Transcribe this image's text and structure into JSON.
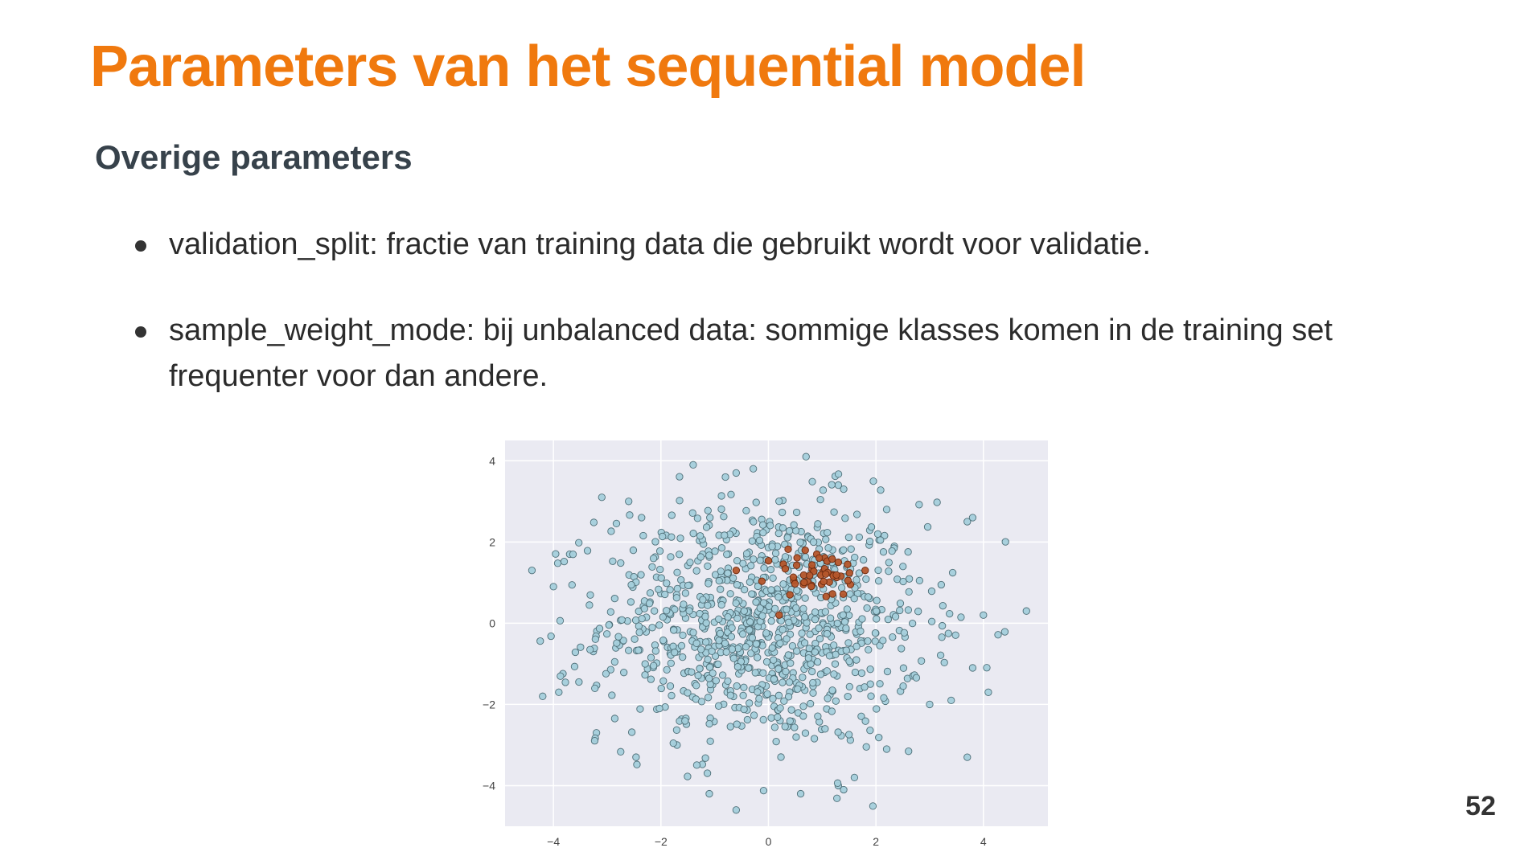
{
  "slide": {
    "title": "Parameters van het sequential model",
    "subtitle": "Overige parameters",
    "bullets": [
      "validation_split: fractie van training data die gebruikt wordt voor validatie.",
      "sample_weight_mode: bij unbalanced data: sommige klasses komen in de training set frequenter voor dan andere."
    ],
    "page_number": "52"
  },
  "chart_data": {
    "type": "scatter",
    "xlim": [
      -4.9,
      5.2
    ],
    "ylim": [
      -5.0,
      4.5
    ],
    "xticks": [
      -4,
      -2,
      0,
      2,
      4
    ],
    "yticks": [
      -4,
      -2,
      0,
      2,
      4
    ],
    "xtick_labels": [
      "−4",
      "−2",
      "0",
      "2",
      "4"
    ],
    "ytick_labels": [
      "−4",
      "−2",
      "0",
      "2",
      "4"
    ],
    "grid": true,
    "background": "#eaeaf2",
    "series": [
      {
        "color": "#a4cfdb",
        "edge": "#4f6f78",
        "distribution": "gaussian",
        "center": [
          -0.1,
          0.0
        ],
        "spread": [
          1.5,
          1.5
        ],
        "count": 1000,
        "points": [
          [
            -4.4,
            1.3
          ],
          [
            -4.0,
            0.9
          ],
          [
            -4.2,
            -1.8
          ],
          [
            -3.9,
            -1.7
          ],
          [
            -3.1,
            3.1
          ],
          [
            -2.6,
            3.0
          ],
          [
            -1.4,
            3.9
          ],
          [
            -0.6,
            3.7
          ],
          [
            -0.8,
            3.6
          ],
          [
            0.7,
            4.1
          ],
          [
            1.4,
            3.3
          ],
          [
            1.3,
            3.4
          ],
          [
            2.2,
            2.8
          ],
          [
            3.8,
            2.6
          ],
          [
            3.7,
            2.5
          ],
          [
            4.0,
            0.2
          ],
          [
            4.8,
            0.3
          ],
          [
            3.8,
            -1.1
          ],
          [
            3.4,
            -1.9
          ],
          [
            3.7,
            -3.3
          ],
          [
            -3.2,
            -2.7
          ],
          [
            -1.7,
            -3.0
          ],
          [
            -0.6,
            -4.6
          ],
          [
            -1.1,
            -4.2
          ],
          [
            0.6,
            -4.2
          ],
          [
            1.3,
            -4.0
          ],
          [
            1.4,
            -4.1
          ],
          [
            1.6,
            -3.8
          ],
          [
            2.2,
            -3.1
          ],
          [
            3.0,
            -2.0
          ]
        ]
      },
      {
        "color": "#b5562b",
        "edge": "#6b2a10",
        "distribution": "gaussian",
        "center": [
          0.9,
          1.2
        ],
        "spread": [
          0.45,
          0.3
        ],
        "count": 45,
        "points": [
          [
            -0.6,
            1.3
          ],
          [
            0.2,
            0.2
          ],
          [
            0.4,
            0.7
          ],
          [
            0.9,
            1.7
          ],
          [
            1.3,
            1.5
          ],
          [
            1.8,
            1.3
          ]
        ]
      }
    ]
  }
}
